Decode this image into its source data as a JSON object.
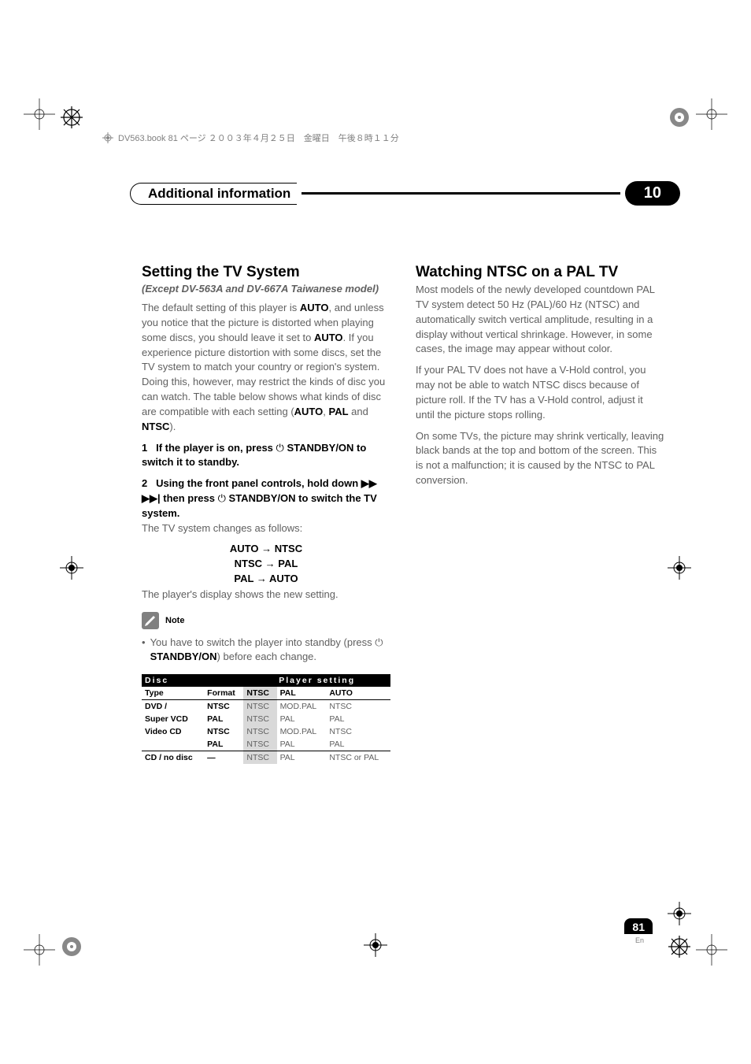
{
  "meta": {
    "header_text": "DV563.book  81 ページ  ２００３年４月２５日　金曜日　午後８時１１分"
  },
  "section_header": {
    "title": "Additional information",
    "badge": "10"
  },
  "left_col": {
    "title": "Setting the TV System",
    "subtitle": "(Except DV-563A and  DV-667A Taiwanese model)",
    "para1_prefix": "The default setting of this player is ",
    "para1_bold1": "AUTO",
    "para1_mid1": ", and unless you notice that the picture is distorted when playing some discs, you should leave it set to ",
    "para1_bold2": "AUTO",
    "para1_mid2": ". If you experience picture distortion with some discs, set the TV system to match your country or region's system. Doing this, however, may restrict the kinds of disc you can watch. The table below shows what kinds of disc are compatible with each setting (",
    "para1_bold3": "AUTO",
    "para1_comma1": ", ",
    "para1_bold4": "PAL",
    "para1_and": " and ",
    "para1_bold5": "NTSC",
    "para1_end": ").",
    "step1_num": "1",
    "step1_text_a": "If the player is on, press   ",
    "step1_text_b": "STANDBY/ON to switch it to standby.",
    "step2_num": "2",
    "step2_text_a": "Using the front panel controls, hold down ",
    "step2_text_b": " then press   ",
    "step2_text_c": "STANDBY/ON to switch the TV system.",
    "step2_grey": "The TV system changes as follows:",
    "arrow1_a": "AUTO",
    "arrow1_b": "NTSC",
    "arrow2_a": "NTSC",
    "arrow2_b": "PAL",
    "arrow3_a": "PAL",
    "arrow3_b": "AUTO",
    "para2": "The player's display shows the new setting.",
    "note_label": "Note",
    "bullet_a": "You have to switch the player into standby (press ",
    "bullet_bold": " STANDBY/ON",
    "bullet_b": ") before each change."
  },
  "table": {
    "header_disc": "Disc",
    "header_player": "Player setting",
    "sub_type": "Type",
    "sub_format": "Format",
    "sub_ntsc": "NTSC",
    "sub_pal": "PAL",
    "sub_auto": "AUTO",
    "rows": [
      {
        "type": "DVD /",
        "format": "NTSC",
        "ntsc": "NTSC",
        "pal": "MOD.PAL",
        "auto": "NTSC"
      },
      {
        "type": "Super VCD",
        "format": "PAL",
        "ntsc": "NTSC",
        "pal": "PAL",
        "auto": "PAL"
      },
      {
        "type": "Video CD",
        "format": "NTSC",
        "ntsc": "NTSC",
        "pal": "MOD.PAL",
        "auto": "NTSC"
      },
      {
        "type": "",
        "format": "PAL",
        "ntsc": "NTSC",
        "pal": "PAL",
        "auto": "PAL"
      },
      {
        "type": "CD / no disc",
        "format": "—",
        "ntsc": "NTSC",
        "pal": "PAL",
        "auto": "NTSC or PAL"
      }
    ]
  },
  "right_col": {
    "title": "Watching NTSC on a PAL TV",
    "para1": "Most models of the newly developed countdown PAL TV system detect 50 Hz (PAL)/60 Hz (NTSC) and automatically switch vertical amplitude, resulting in a display without vertical shrinkage. However, in some cases, the image may appear without color.",
    "para2": "If your PAL TV does not have a V-Hold control, you may not be able to watch NTSC discs because of picture roll. If the TV has a V-Hold control, adjust it until the picture stops rolling.",
    "para3": "On some TVs, the picture may shrink vertically, leaving black bands at the top and bottom of the screen. This is not a malfunction; it is caused by the NTSC to PAL conversion."
  },
  "footer": {
    "page": "81",
    "lang": "En"
  },
  "colors": {
    "grey_text": "#606060",
    "shade_cell": "#d9d9d9"
  }
}
